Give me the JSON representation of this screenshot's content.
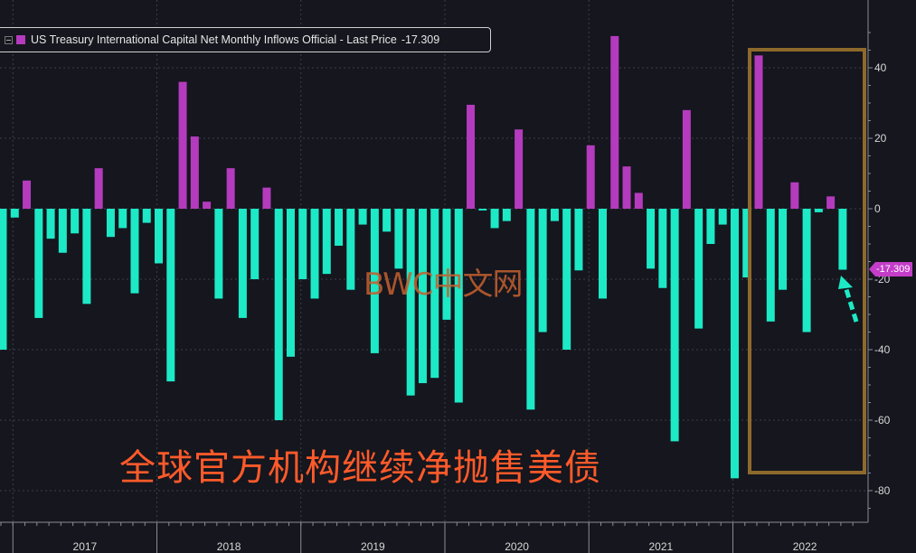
{
  "legend": {
    "label": "US Treasury International Capital Net Monthly Inflows Official - Last Price",
    "value": "-17.309"
  },
  "last_value_tag": "-17.309",
  "watermark": "BWC中文网",
  "caption": "全球官方机构继续净抛售美债",
  "colors": {
    "positive": "#b43bbd",
    "negative": "#1de9c6",
    "highlight_box": "#8d6a2b",
    "caption": "#ff5a2a",
    "background": "#15161e"
  },
  "chart_data": {
    "type": "bar",
    "title": "",
    "xlabel": "",
    "ylabel": "",
    "ylim": [
      -85,
      50
    ],
    "yticks": [
      40,
      20,
      0,
      -20,
      -40,
      -60,
      -80
    ],
    "year_labels": [
      "2017",
      "2018",
      "2019",
      "2020",
      "2021",
      "2022"
    ],
    "grid": true,
    "y_axis_position": "right",
    "series": [
      {
        "name": "US Treasury International Capital Net Monthly Inflows Official",
        "values": [
          -40,
          -2.5,
          8,
          -31,
          -8.5,
          -12.5,
          -7,
          -27,
          11.5,
          -8,
          -5.5,
          -24,
          -4,
          -15.5,
          -49,
          36,
          20.5,
          2,
          -25.5,
          11.5,
          -31,
          -20,
          6,
          -60,
          -42,
          -20,
          -25.5,
          -18.5,
          -10.5,
          -23,
          -4.5,
          -41,
          -6.5,
          -17,
          -53,
          -49.5,
          -48,
          -31.5,
          -55,
          29.5,
          -0.5,
          -5.5,
          -3.5,
          22.5,
          -57,
          -35,
          -3.5,
          -40,
          -17.5,
          18,
          -25.5,
          49,
          12,
          4.5,
          -17,
          -22.5,
          -66,
          28,
          -34,
          -10,
          -4.5,
          -76.5,
          -19.5,
          43.5,
          -32,
          -23,
          7.5,
          -35,
          -1,
          3.5,
          -17.309
        ]
      }
    ]
  }
}
